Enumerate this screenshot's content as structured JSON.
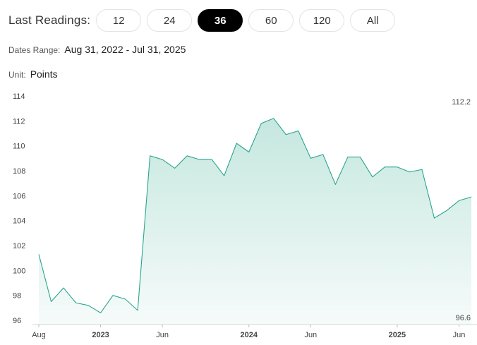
{
  "toolbar": {
    "label": "Last Readings:",
    "buttons": [
      "12",
      "24",
      "36",
      "60",
      "120",
      "All"
    ],
    "active": "36"
  },
  "dates_range": {
    "label": "Dates Range:",
    "value": "Aug 31, 2022 - Jul 31, 2025"
  },
  "unit": {
    "label": "Unit:",
    "value": "Points"
  },
  "colors": {
    "line": "#2aa58e",
    "fill_top": "#c5e7df",
    "fill_bottom": "#f6fbfa",
    "active_button": "#000000"
  },
  "chart_data": {
    "type": "area",
    "x": [
      "2022-08",
      "2022-09",
      "2022-10",
      "2022-11",
      "2022-12",
      "2023-01",
      "2023-02",
      "2023-03",
      "2023-04",
      "2023-05",
      "2023-06",
      "2023-07",
      "2023-08",
      "2023-09",
      "2023-10",
      "2023-11",
      "2023-12",
      "2024-01",
      "2024-02",
      "2024-03",
      "2024-04",
      "2024-05",
      "2024-06",
      "2024-07",
      "2024-08",
      "2024-09",
      "2024-10",
      "2024-11",
      "2024-12",
      "2025-01",
      "2025-02",
      "2025-03",
      "2025-04",
      "2025-05",
      "2025-06",
      "2025-07"
    ],
    "series": [
      {
        "values": [
          101.3,
          97.5,
          98.6,
          97.4,
          97.2,
          96.6,
          98.0,
          97.7,
          96.8,
          109.2,
          108.9,
          108.2,
          109.2,
          108.9,
          108.9,
          107.6,
          110.2,
          109.5,
          111.8,
          112.2,
          110.9,
          111.2,
          109.0,
          109.3,
          106.9,
          109.1,
          109.1,
          107.5,
          108.3,
          108.3,
          107.9,
          108.1,
          104.2,
          104.8,
          105.6,
          105.9
        ]
      }
    ],
    "x_ticks": [
      {
        "label": "Aug",
        "bold": false,
        "index": 0
      },
      {
        "label": "2023",
        "bold": true,
        "index": 5
      },
      {
        "label": "Jun",
        "bold": false,
        "index": 10
      },
      {
        "label": "2024",
        "bold": true,
        "index": 17
      },
      {
        "label": "Jun",
        "bold": false,
        "index": 22
      },
      {
        "label": "2025",
        "bold": true,
        "index": 29
      },
      {
        "label": "Jun",
        "bold": false,
        "index": 34
      }
    ],
    "y_ticks": [
      "96",
      "98",
      "100",
      "102",
      "104",
      "106",
      "108",
      "110",
      "112",
      "114"
    ],
    "ylim": [
      96,
      114
    ],
    "annotations": {
      "max": "112.2",
      "min": "96.6"
    },
    "grid": false
  }
}
